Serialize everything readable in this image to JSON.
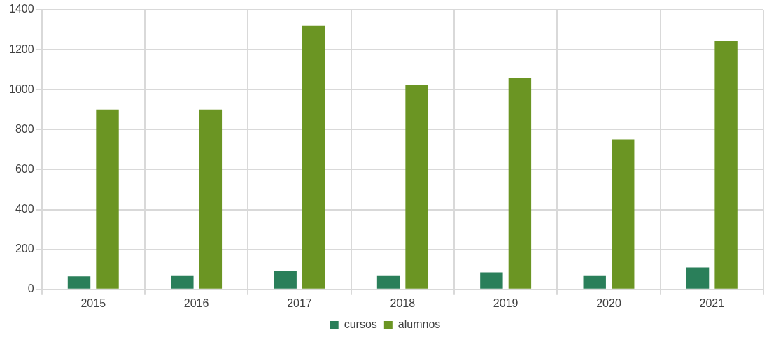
{
  "chart_data": {
    "type": "bar",
    "categories": [
      "2015",
      "2016",
      "2017",
      "2018",
      "2019",
      "2020",
      "2021"
    ],
    "series": [
      {
        "name": "cursos",
        "color": "#2a7f5a",
        "values": [
          65,
          70,
          90,
          70,
          85,
          70,
          110
        ]
      },
      {
        "name": "alumnos",
        "color": "#6b9523",
        "values": [
          900,
          900,
          1320,
          1025,
          1060,
          750,
          1245
        ]
      }
    ],
    "ylim": [
      0,
      1400
    ],
    "yticks": [
      0,
      200,
      400,
      600,
      800,
      1000,
      1200,
      1400
    ],
    "grid": true,
    "legend": "bottom"
  }
}
